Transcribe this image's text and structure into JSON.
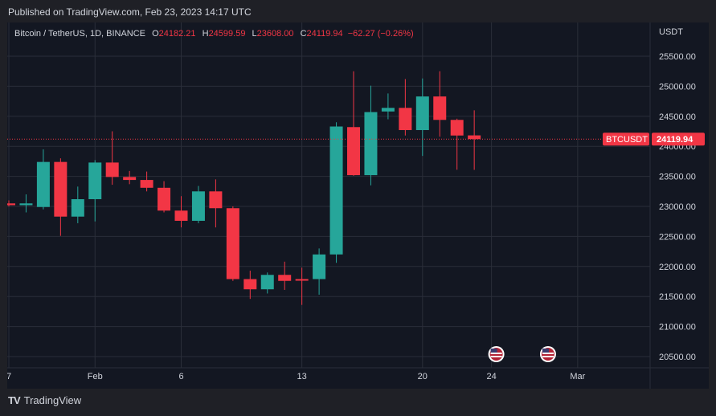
{
  "header": {
    "published": "Published on TradingView.com, Feb 23, 2023 14:17 UTC"
  },
  "legend": {
    "symbol": "Bitcoin / TetherUS, 1D, BINANCE",
    "o_label": "O",
    "o_value": "24182.21",
    "h_label": "H",
    "h_value": "24599.59",
    "l_label": "L",
    "l_value": "23608.00",
    "c_label": "C",
    "c_value": "24119.94",
    "change": "−62.27 (−0.26%)"
  },
  "price_axis": {
    "unit": "USDT"
  },
  "price_line": {
    "label": "BTCUSDT",
    "value": "24119.94"
  },
  "footer": {
    "brand": "TradingView",
    "logo": "TV"
  },
  "colors": {
    "up": "#26a69a",
    "down": "#f23645",
    "bg": "#131722",
    "grid": "#2a2e39"
  },
  "chart_data": {
    "type": "candlestick",
    "y_ticks": [
      20500,
      21000,
      21500,
      22000,
      22500,
      23000,
      23500,
      24000,
      24500,
      25000,
      25500
    ],
    "y_tick_labels": [
      "20500.00",
      "21000.00",
      "21500.00",
      "22000.00",
      "22500.00",
      "23000.00",
      "23500.00",
      "24000.00",
      "24500.00",
      "25000.00",
      "25500.00"
    ],
    "x_ticks": [
      {
        "day": 0,
        "label": "7"
      },
      {
        "day": 5,
        "label": "Feb"
      },
      {
        "day": 10,
        "label": "6"
      },
      {
        "day": 17,
        "label": "13"
      },
      {
        "day": 24,
        "label": "20"
      },
      {
        "day": 28,
        "label": "24"
      },
      {
        "day": 33,
        "label": "Mar"
      }
    ],
    "event_markers": [
      {
        "day": 28,
        "icon": "us-flag-icon"
      },
      {
        "day": 31,
        "icon": "us-flag-icon"
      }
    ],
    "candles": [
      {
        "day": 0,
        "o": 23050,
        "h": 23100,
        "l": 23000,
        "c": 23020
      },
      {
        "day": 1,
        "o": 23020,
        "h": 23200,
        "l": 22900,
        "c": 23050
      },
      {
        "day": 2,
        "o": 22990,
        "h": 23950,
        "l": 22950,
        "c": 23740
      },
      {
        "day": 3,
        "o": 23740,
        "h": 23800,
        "l": 22510,
        "c": 22830
      },
      {
        "day": 4,
        "o": 22830,
        "h": 23330,
        "l": 22720,
        "c": 23120
      },
      {
        "day": 5,
        "o": 23120,
        "h": 23770,
        "l": 22750,
        "c": 23730
      },
      {
        "day": 6,
        "o": 23730,
        "h": 24250,
        "l": 23360,
        "c": 23490
      },
      {
        "day": 7,
        "o": 23490,
        "h": 23590,
        "l": 23370,
        "c": 23440
      },
      {
        "day": 8,
        "o": 23440,
        "h": 23580,
        "l": 23250,
        "c": 23310
      },
      {
        "day": 9,
        "o": 23310,
        "h": 23420,
        "l": 22900,
        "c": 22930
      },
      {
        "day": 10,
        "o": 22930,
        "h": 23170,
        "l": 22650,
        "c": 22760
      },
      {
        "day": 11,
        "o": 22760,
        "h": 23340,
        "l": 22720,
        "c": 23250
      },
      {
        "day": 12,
        "o": 23250,
        "h": 23450,
        "l": 22650,
        "c": 22970
      },
      {
        "day": 13,
        "o": 22970,
        "h": 23000,
        "l": 21760,
        "c": 21790
      },
      {
        "day": 14,
        "o": 21790,
        "h": 21930,
        "l": 21460,
        "c": 21620
      },
      {
        "day": 15,
        "o": 21620,
        "h": 21900,
        "l": 21550,
        "c": 21860
      },
      {
        "day": 16,
        "o": 21860,
        "h": 22080,
        "l": 21610,
        "c": 21760
      },
      {
        "day": 17,
        "o": 21790,
        "h": 21980,
        "l": 21360,
        "c": 21780
      },
      {
        "day": 18,
        "o": 21790,
        "h": 22300,
        "l": 21530,
        "c": 22200
      },
      {
        "day": 19,
        "o": 22200,
        "h": 24400,
        "l": 22060,
        "c": 24330
      },
      {
        "day": 20,
        "o": 24320,
        "h": 25250,
        "l": 23510,
        "c": 23520
      },
      {
        "day": 21,
        "o": 23520,
        "h": 25010,
        "l": 23350,
        "c": 24570
      },
      {
        "day": 22,
        "o": 24580,
        "h": 24880,
        "l": 24450,
        "c": 24640
      },
      {
        "day": 23,
        "o": 24640,
        "h": 25120,
        "l": 24180,
        "c": 24270
      },
      {
        "day": 24,
        "o": 24270,
        "h": 25130,
        "l": 23840,
        "c": 24830
      },
      {
        "day": 25,
        "o": 24830,
        "h": 25250,
        "l": 24160,
        "c": 24440
      },
      {
        "day": 26,
        "o": 24440,
        "h": 24460,
        "l": 23610,
        "c": 24180
      },
      {
        "day": 27,
        "o": 24182.21,
        "h": 24599.59,
        "l": 23608.0,
        "c": 24119.94
      }
    ]
  }
}
